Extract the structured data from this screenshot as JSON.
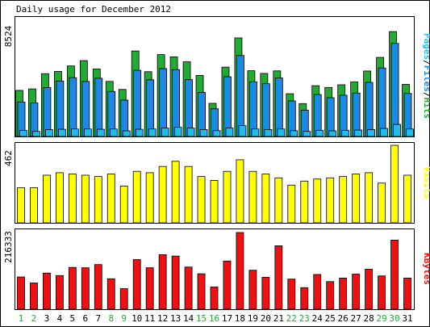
{
  "title": "Daily usage for December 2012",
  "colors": {
    "hits": "#22aa33",
    "files": "#1e88e5",
    "pages": "#22bbee",
    "visits": "#ffff00",
    "kbytes": "#ee1111",
    "weekday_label": "#000000",
    "weekend_label": "#22aa33",
    "frame": "#000000",
    "panel_bg": "#ffffff"
  },
  "chart_data": [
    {
      "type": "bar",
      "title": "Daily usage for December 2012",
      "categories": [
        "1",
        "2",
        "3",
        "4",
        "5",
        "6",
        "7",
        "8",
        "9",
        "10",
        "11",
        "12",
        "13",
        "14",
        "15",
        "16",
        "17",
        "18",
        "19",
        "20",
        "21",
        "22",
        "23",
        "24",
        "25",
        "26",
        "27",
        "28",
        "29",
        "30",
        "31"
      ],
      "weekend_days": [
        "1",
        "2",
        "8",
        "9",
        "15",
        "16",
        "22",
        "23",
        "29",
        "30"
      ],
      "ylabel_max": "8524",
      "ylim": [
        0,
        8524
      ],
      "legend": [
        "Pages",
        "Files",
        "Hits"
      ],
      "series": [
        {
          "name": "Hits",
          "values": [
            3450,
            3560,
            4700,
            4870,
            5280,
            5680,
            5050,
            4120,
            3520,
            6400,
            4850,
            6130,
            5960,
            5590,
            4570,
            2480,
            5190,
            7380,
            4920,
            4720,
            4910,
            3200,
            2460,
            3800,
            3670,
            3870,
            4080,
            4900,
            5920,
            7850,
            3900
          ]
        },
        {
          "name": "Files",
          "values": [
            2580,
            2510,
            3660,
            4150,
            4400,
            4120,
            4360,
            3370,
            2720,
            4950,
            4240,
            5080,
            5000,
            4250,
            3300,
            2070,
            4470,
            6060,
            4090,
            3950,
            4380,
            2660,
            1970,
            3140,
            2900,
            3090,
            3250,
            4050,
            5130,
            6970,
            3220
          ]
        },
        {
          "name": "Pages",
          "values": [
            450,
            380,
            510,
            540,
            560,
            560,
            540,
            560,
            420,
            540,
            560,
            630,
            690,
            630,
            520,
            440,
            630,
            810,
            560,
            520,
            560,
            430,
            380,
            450,
            420,
            450,
            480,
            510,
            600,
            900,
            560
          ]
        }
      ]
    },
    {
      "type": "bar",
      "categories": [
        "1",
        "2",
        "3",
        "4",
        "5",
        "6",
        "7",
        "8",
        "9",
        "10",
        "11",
        "12",
        "13",
        "14",
        "15",
        "16",
        "17",
        "18",
        "19",
        "20",
        "21",
        "22",
        "23",
        "24",
        "25",
        "26",
        "27",
        "28",
        "29",
        "30",
        "31"
      ],
      "ylabel_max": "462",
      "ylim": [
        0,
        462
      ],
      "legend": [
        "Visits"
      ],
      "series": [
        {
          "name": "Visits",
          "values": [
            210,
            210,
            284,
            299,
            291,
            284,
            276,
            291,
            219,
            307,
            299,
            336,
            367,
            336,
            276,
            253,
            307,
            376,
            307,
            291,
            268,
            225,
            249,
            261,
            268,
            276,
            291,
            299,
            237,
            462,
            284
          ]
        }
      ]
    },
    {
      "type": "bar",
      "categories": [
        "1",
        "2",
        "3",
        "4",
        "5",
        "6",
        "7",
        "8",
        "9",
        "10",
        "11",
        "12",
        "13",
        "14",
        "15",
        "16",
        "17",
        "18",
        "19",
        "20",
        "21",
        "22",
        "23",
        "24",
        "25",
        "26",
        "27",
        "28",
        "29",
        "30",
        "31"
      ],
      "ylabel_max": "216333",
      "ylim": [
        0,
        216333
      ],
      "legend": [
        "KBytes"
      ],
      "series": [
        {
          "name": "KBytes",
          "values": [
            91000,
            74000,
            102000,
            95000,
            118000,
            117000,
            126000,
            86000,
            58000,
            140000,
            117000,
            154000,
            150000,
            119000,
            100000,
            63000,
            136000,
            216333,
            110000,
            90000,
            179000,
            85000,
            61000,
            98000,
            78000,
            88000,
            99000,
            113000,
            94000,
            195000,
            88000
          ]
        }
      ]
    }
  ]
}
